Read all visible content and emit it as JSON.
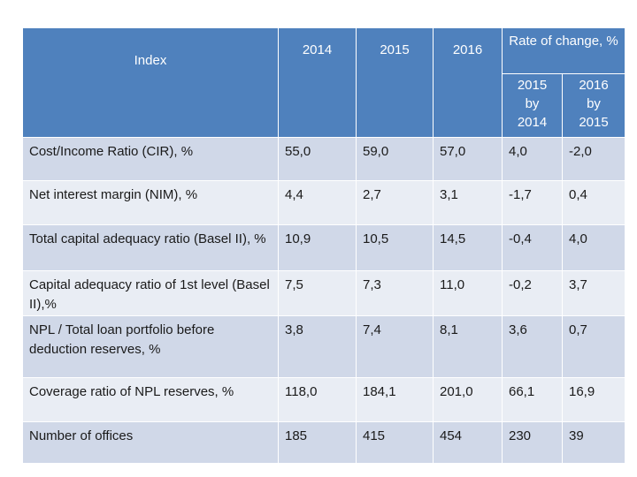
{
  "table": {
    "header": {
      "index": "Index",
      "years": [
        "2014",
        "2015",
        "2016"
      ],
      "rate_of_change": "Rate of change, %",
      "sub": [
        {
          "line1": "2015",
          "line2": "by",
          "line3": "2014"
        },
        {
          "line1": "2016",
          "line2": "by",
          "line3": "2015"
        }
      ]
    },
    "rows": [
      {
        "label": "Cost/Income Ratio (CIR), %",
        "v2014": "55,0",
        "v2015": "59,0",
        "v2016": "57,0",
        "c1": "4,0",
        "c2": "-2,0"
      },
      {
        "label": "Net interest margin (NIM), %",
        "v2014": "4,4",
        "v2015": "2,7",
        "v2016": "3,1",
        "c1": "-1,7",
        "c2": "0,4"
      },
      {
        "label": "Total capital adequacy ratio (Basel II), %",
        "v2014": "10,9",
        "v2015": "10,5",
        "v2016": "14,5",
        "c1": "-0,4",
        "c2": "4,0"
      },
      {
        "label": "Capital adequacy ratio of 1st level (Basel II),%",
        "v2014": "7,5",
        "v2015": "7,3",
        "v2016": "11,0",
        "c1": "-0,2",
        "c2": "3,7"
      },
      {
        "label": "NPL / Total loan portfolio before deduction reserves, %",
        "v2014": "3,8",
        "v2015": "7,4",
        "v2016": "8,1",
        "c1": "3,6",
        "c2": "0,7"
      },
      {
        "label": "Coverage ratio of NPL reserves, %",
        "v2014": "118,0",
        "v2015": "184,1",
        "v2016": "201,0",
        "c1": "66,1",
        "c2": "16,9"
      },
      {
        "label": "Number of offices",
        "v2014": "185",
        "v2015": "415",
        "v2016": "454",
        "c1": "230",
        "c2": "39"
      }
    ]
  }
}
